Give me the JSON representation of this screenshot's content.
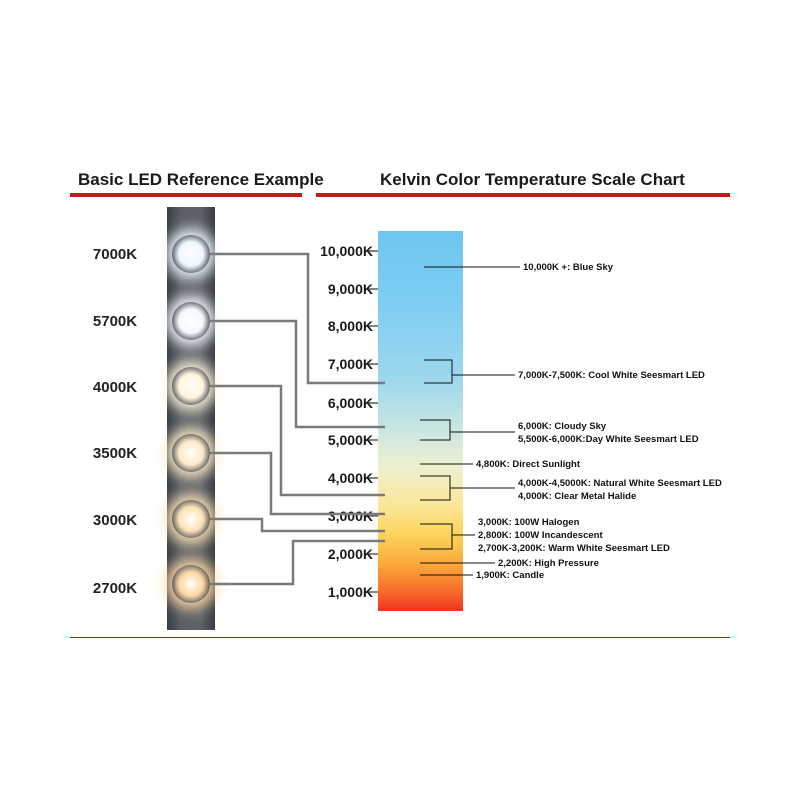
{
  "left_header": "Basic LED Reference Example",
  "right_header": "Kelvin Color Temperature Scale Chart",
  "led_labels": [
    "7000K",
    "5700K",
    "4000K",
    "3500K",
    "3000K",
    "2700K"
  ],
  "led_colors": [
    "#eef6ff",
    "#f4f8ff",
    "#fff4dc",
    "#fde9c6",
    "#fde2b4",
    "#fbd6a0"
  ],
  "scale_ticks": [
    "10,000K",
    "9,000K",
    "8,000K",
    "7,000K",
    "6,000K",
    "5,000K",
    "4,000K",
    "3,000K",
    "2,000K",
    "1,000K"
  ],
  "annotations": [
    "10,000K +: Blue Sky",
    "7,000K-7,500K: Cool White Seesmart LED",
    "6,000K: Cloudy Sky",
    "5,500K-6,000K:Day White Seesmart LED",
    "4,800K: Direct Sunlight",
    "4,000K-4,5000K: Natural White Seesmart LED",
    "4,000K: Clear Metal Halide",
    "3,000K: 100W Halogen",
    "2,800K: 100W Incandescent",
    "2,700K-3,200K: Warm White Seesmart LED",
    "2,200K: High Pressure",
    "1,900K: Candle"
  ]
}
